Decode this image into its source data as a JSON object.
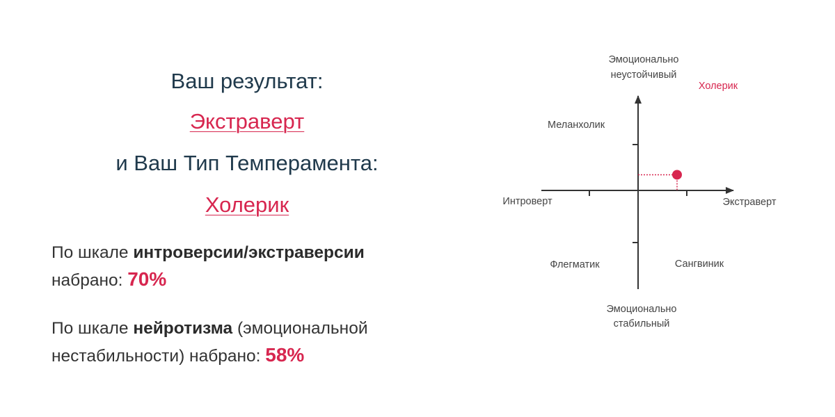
{
  "result": {
    "heading": "Ваш результат:",
    "type_link": "Экстраверт",
    "temperament_heading": "и Ваш Тип Темперамента:",
    "temperament_link": "Холерик"
  },
  "scales": {
    "extraversion": {
      "prefix": "По шкале ",
      "name": "интроверсии/экстраверсии",
      "suffix": "набрано: ",
      "value": "70%",
      "percent": 70
    },
    "neuroticism": {
      "prefix": "По шкале ",
      "name": "нейротизма",
      "middle": " (эмоциональной",
      "suffix": "нестабильности) набрано: ",
      "value": "58%",
      "percent": 58
    }
  },
  "diagram": {
    "top_label_line1": "Эмоционально",
    "top_label_line2": "неустойчивый",
    "bottom_label_line1": "Эмоционально",
    "bottom_label_line2": "стабильный",
    "left_label": "Интроверт",
    "right_label": "Экстраверт",
    "quadrant_top_left": "Меланхолик",
    "quadrant_top_right": "Холерик",
    "quadrant_bottom_left": "Флегматик",
    "quadrant_bottom_right": "Сангвиник",
    "marker": {
      "extraversion_percent": 70,
      "neuroticism_percent": 58
    },
    "colors": {
      "accent": "#d7264f",
      "axis": "#333333",
      "text": "#444444"
    }
  }
}
